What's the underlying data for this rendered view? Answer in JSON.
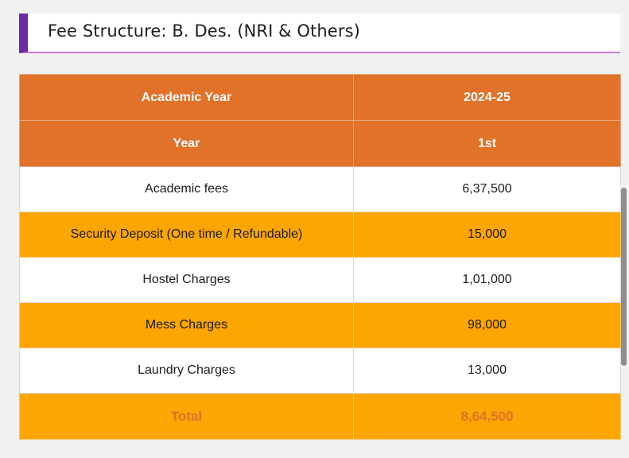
{
  "heading": {
    "title": "Fee Structure: B. Des. (NRI & Others)"
  },
  "table": {
    "header_rows": [
      {
        "label": "Academic Year",
        "value": "2024-25"
      },
      {
        "label": "Year",
        "value": "1st"
      }
    ],
    "rows": [
      {
        "label": "Academic fees",
        "value": "6,37,500"
      },
      {
        "label": "Security Deposit (One time / Refundable)",
        "value": "15,000"
      },
      {
        "label": "Hostel Charges",
        "value": "1,01,000"
      },
      {
        "label": "Mess Charges",
        "value": "98,000"
      },
      {
        "label": "Laundry Charges",
        "value": "13,000"
      }
    ],
    "total": {
      "label": "Total",
      "value": "8,64,500"
    }
  },
  "colors": {
    "header_orange": "#e0722a",
    "stripe_orange": "#fda500",
    "accent_purple": "#6a2aa3",
    "underline_pink": "#c97ad8"
  }
}
